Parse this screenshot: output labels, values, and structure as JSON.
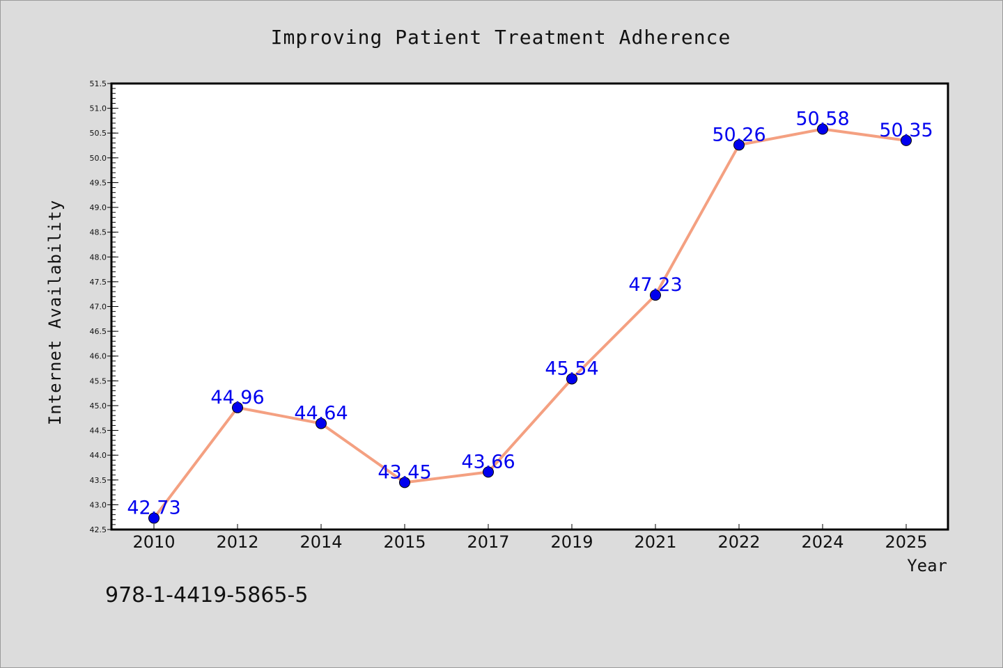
{
  "chart_data": {
    "type": "line",
    "title": "Improving Patient Treatment Adherence",
    "xlabel": "Year",
    "ylabel": "Internet Availability",
    "categories": [
      "2010",
      "2012",
      "2014",
      "2015",
      "2017",
      "2019",
      "2021",
      "2022",
      "2024",
      "2025"
    ],
    "series": [
      {
        "values": [
          42.73,
          44.96,
          44.64,
          43.45,
          43.66,
          45.54,
          47.23,
          50.26,
          50.58,
          50.35
        ],
        "data_labels": [
          "42.73",
          "44.96",
          "44.64",
          "43.45",
          "43.66",
          "45.54",
          "47.23",
          "50.26",
          "50.58",
          "50.35"
        ],
        "line_color": "#f4a081",
        "marker_color": "#0000ee"
      }
    ],
    "ylim": [
      42.5,
      51.5
    ],
    "yticks": [
      "42.5",
      "43.0",
      "43.5",
      "44.0",
      "44.5",
      "45.0",
      "45.5",
      "46.0",
      "46.5",
      "47.0",
      "47.5",
      "48.0",
      "48.5",
      "49.0",
      "49.5",
      "50.0",
      "50.5",
      "51.0",
      "51.5"
    ],
    "grid": false,
    "label_color": "#0000ee"
  },
  "footer": {
    "isbn": "978-1-4419-5865-5"
  }
}
